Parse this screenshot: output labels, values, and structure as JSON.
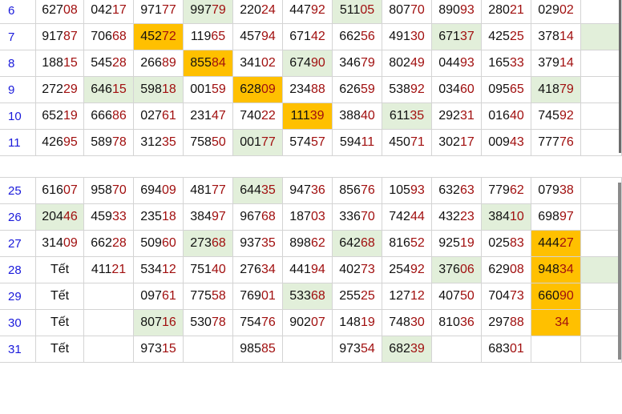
{
  "colors": {
    "highlight_green": "#e2efda",
    "highlight_orange": "#ffc000",
    "tail_digits": "#a10f0f",
    "row_number": "#1a1adb"
  },
  "tables": [
    {
      "rows": [
        {
          "n": "6",
          "cells": [
            "62708",
            "04217",
            "97177",
            "99779",
            "22024",
            "44792",
            "51105",
            "80770",
            "89093",
            "28021",
            "02902",
            ""
          ],
          "hl": [
            "",
            "",
            "",
            "g",
            "",
            "",
            "g",
            "",
            "",
            "",
            "",
            ""
          ]
        },
        {
          "n": "7",
          "cells": [
            "91787",
            "70668",
            "45272",
            "11965",
            "45794",
            "67142",
            "66256",
            "49130",
            "67137",
            "42525",
            "37814",
            ""
          ],
          "hl": [
            "",
            "",
            "o",
            "",
            "",
            "",
            "",
            "",
            "g",
            "",
            "",
            "g"
          ]
        },
        {
          "n": "8",
          "cells": [
            "18815",
            "54528",
            "26689",
            "85584",
            "34102",
            "67490",
            "34679",
            "80249",
            "04493",
            "16533",
            "37914",
            ""
          ],
          "hl": [
            "",
            "",
            "",
            "o",
            "",
            "g",
            "",
            "",
            "",
            "",
            "",
            ""
          ]
        },
        {
          "n": "9",
          "cells": [
            "27229",
            "64615",
            "59818",
            "00159",
            "62809",
            "23488",
            "62659",
            "53892",
            "03460",
            "09565",
            "41879",
            ""
          ],
          "hl": [
            "",
            "g",
            "g",
            "",
            "o",
            "",
            "",
            "",
            "",
            "",
            "g",
            ""
          ]
        },
        {
          "n": "10",
          "cells": [
            "65219",
            "66686",
            "02761",
            "23147",
            "74022",
            "11139",
            "38840",
            "61135",
            "29231",
            "01640",
            "74592",
            ""
          ],
          "hl": [
            "",
            "",
            "",
            "",
            "",
            "o",
            "",
            "g",
            "",
            "",
            "",
            ""
          ]
        },
        {
          "n": "11",
          "cells": [
            "42695",
            "58978",
            "31235",
            "75850",
            "00177",
            "57457",
            "59411",
            "45071",
            "30217",
            "00943",
            "77776",
            ""
          ],
          "hl": [
            "",
            "",
            "",
            "",
            "g",
            "",
            "",
            "",
            "",
            "",
            "",
            ""
          ]
        }
      ]
    },
    {
      "rows": [
        {
          "n": "25",
          "cells": [
            "61607",
            "95870",
            "69409",
            "48177",
            "64435",
            "94736",
            "85676",
            "10593",
            "63263",
            "77962",
            "07938",
            ""
          ],
          "hl": [
            "",
            "",
            "",
            "",
            "g",
            "",
            "",
            "",
            "",
            "",
            "",
            ""
          ]
        },
        {
          "n": "26",
          "cells": [
            "20446",
            "45933",
            "23518",
            "38497",
            "96768",
            "18703",
            "33670",
            "74244",
            "43223",
            "38410",
            "69897",
            ""
          ],
          "hl": [
            "g",
            "",
            "",
            "",
            "",
            "",
            "",
            "",
            "",
            "g",
            "",
            ""
          ]
        },
        {
          "n": "27",
          "cells": [
            "31409",
            "66228",
            "50960",
            "27368",
            "93735",
            "89862",
            "64268",
            "81652",
            "92519",
            "02583",
            "44427",
            ""
          ],
          "hl": [
            "",
            "",
            "",
            "g",
            "",
            "",
            "g",
            "",
            "",
            "",
            "o",
            ""
          ]
        },
        {
          "n": "28",
          "cells": [
            "Tết",
            "41121",
            "53412",
            "75140",
            "27634",
            "44194",
            "40273",
            "25492",
            "37606",
            "62908",
            "94834",
            ""
          ],
          "hl": [
            "",
            "",
            "",
            "",
            "",
            "",
            "",
            "",
            "g",
            "",
            "o",
            "g"
          ]
        },
        {
          "n": "29",
          "cells": [
            "Tết",
            "",
            "09761",
            "77558",
            "76901",
            "53368",
            "25525",
            "12712",
            "40750",
            "70473",
            "66090",
            ""
          ],
          "hl": [
            "",
            "",
            "",
            "",
            "",
            "g",
            "",
            "",
            "",
            "",
            "o",
            ""
          ]
        },
        {
          "n": "30",
          "cells": [
            "Tết",
            "",
            "80716",
            "53078",
            "75476",
            "90207",
            "14819",
            "74830",
            "81036",
            "29788",
            "34",
            ""
          ],
          "hl": [
            "",
            "",
            "g",
            "",
            "",
            "",
            "",
            "",
            "",
            "",
            "o",
            ""
          ]
        },
        {
          "n": "31",
          "cells": [
            "Tết",
            "",
            "97315",
            "",
            "98585",
            "",
            "97354",
            "68239",
            "",
            "68301",
            "",
            ""
          ],
          "hl": [
            "",
            "",
            "",
            "",
            "",
            "",
            "",
            "g",
            "",
            "",
            "",
            ""
          ]
        }
      ]
    }
  ]
}
